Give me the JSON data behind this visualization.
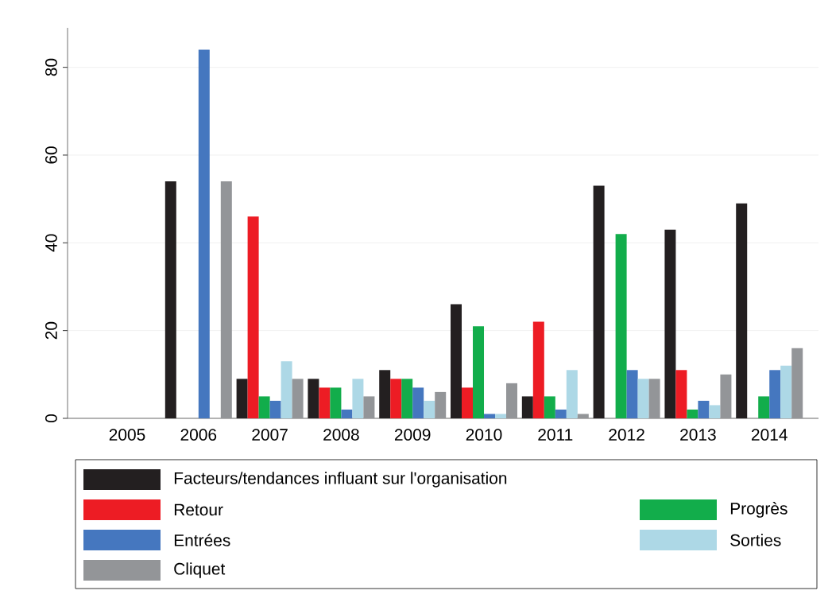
{
  "chart_data": {
    "type": "bar",
    "categories": [
      "2005",
      "2006",
      "2007",
      "2008",
      "2009",
      "2010",
      "2011",
      "2012",
      "2013",
      "2014"
    ],
    "series": [
      {
        "name": "Facteurs/tendances influant sur l'organisation",
        "color": "#231f20",
        "values": [
          0,
          54,
          9,
          9,
          11,
          26,
          5,
          53,
          43,
          49
        ]
      },
      {
        "name": "Retour",
        "color": "#ed1c24",
        "values": [
          0,
          0,
          46,
          7,
          9,
          7,
          22,
          0,
          11,
          0
        ]
      },
      {
        "name": "Progrès",
        "color": "#12ad4b",
        "values": [
          0,
          0,
          5,
          7,
          9,
          21,
          5,
          42,
          2,
          5
        ]
      },
      {
        "name": "Entrées",
        "color": "#4577bf",
        "values": [
          0,
          84,
          4,
          2,
          7,
          1,
          2,
          11,
          4,
          11
        ]
      },
      {
        "name": "Sorties",
        "color": "#add8e6",
        "values": [
          0,
          0,
          13,
          9,
          4,
          1,
          11,
          9,
          3,
          12
        ]
      },
      {
        "name": "Cliquet",
        "color": "#939598",
        "values": [
          0,
          54,
          9,
          5,
          6,
          8,
          1,
          9,
          10,
          16
        ]
      }
    ],
    "ylim": [
      0,
      89
    ],
    "yticks": [
      0,
      20,
      40,
      60,
      80
    ],
    "grid": "y",
    "legend": "bottom"
  }
}
